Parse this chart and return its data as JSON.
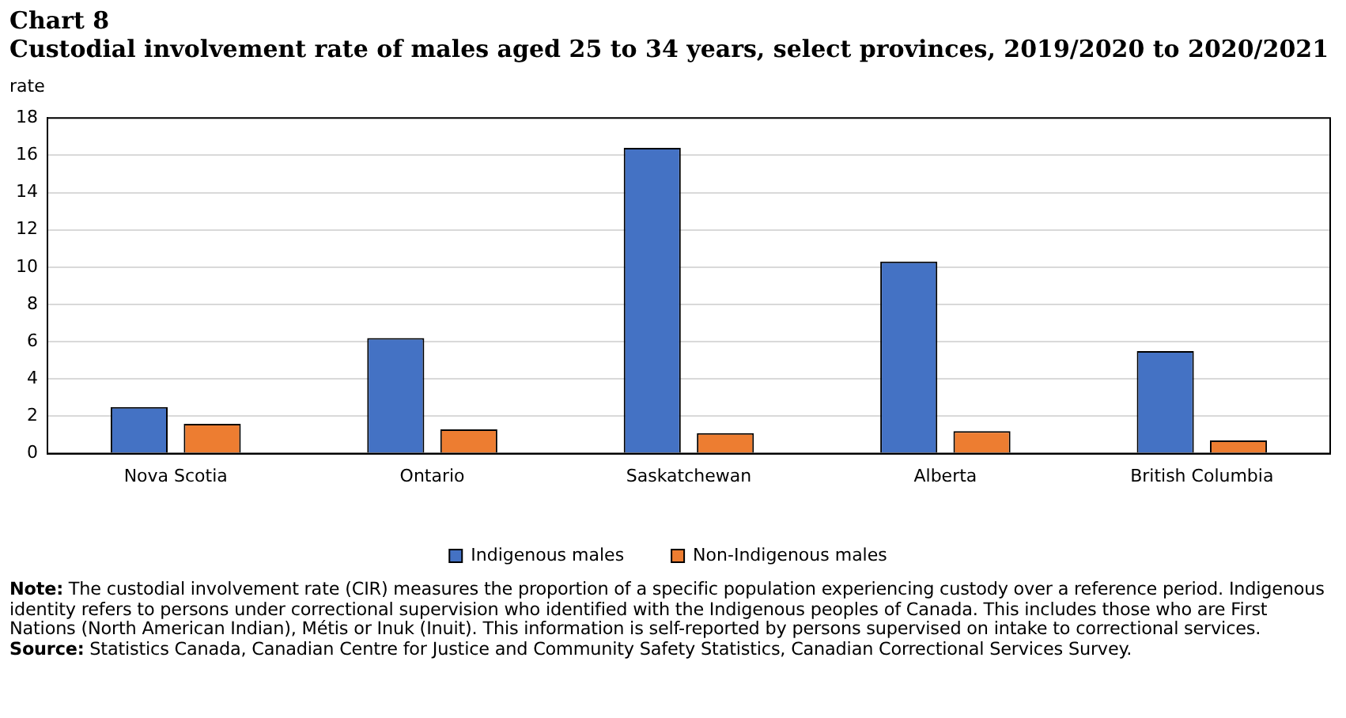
{
  "chart_data": {
    "type": "bar",
    "title": "Chart 8",
    "subtitle": "Custodial involvement rate of males aged 25 to 34 years, select provinces, 2019/2020 to 2020/2021",
    "ylabel": "rate",
    "categories": [
      "Nova Scotia",
      "Ontario",
      "Saskatchewan",
      "Alberta",
      "British Columbia"
    ],
    "series": [
      {
        "name": "Indigenous males",
        "color": "#4472c4",
        "values": [
          2.5,
          6.2,
          16.4,
          10.3,
          5.5
        ]
      },
      {
        "name": "Non-Indigenous males",
        "color": "#ed7d31",
        "values": [
          1.6,
          1.3,
          1.1,
          1.2,
          0.7
        ]
      }
    ],
    "ylim": [
      0,
      18
    ],
    "yticks": [
      0,
      2,
      4,
      6,
      8,
      10,
      12,
      14,
      16,
      18
    ],
    "grid": "y",
    "legend": "bottom",
    "annotations": [
      "Note: The custodial involvement rate (CIR) measures the proportion of a specific population experiencing custody over a reference period. Indigenous identity refers to persons under correctional supervision who identified with the Indigenous peoples of Canada. This includes those who are First Nations (North American Indian), Métis or Inuk (Inuit). This information is self-reported by persons supervised on intake to correctional services.",
      "Source: Statistics Canada, Canadian Centre for Justice and Community Safety Statistics, Canadian Correctional Services Survey."
    ]
  }
}
